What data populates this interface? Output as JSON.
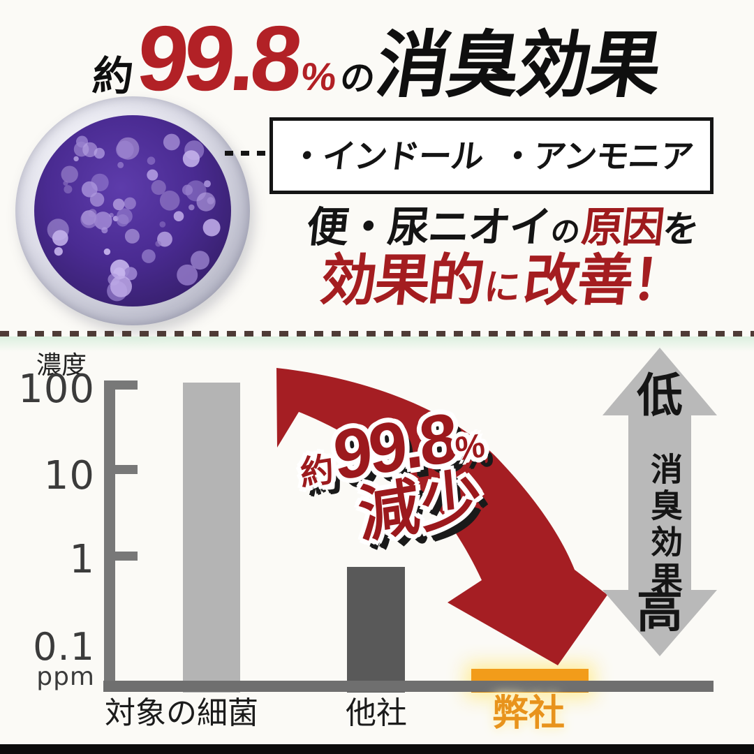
{
  "page": {
    "background": "#fbfaf6",
    "accent_red": "#b22126",
    "dark_red": "#a41d20",
    "bottom_bar_color": "#0c0c0c"
  },
  "header": {
    "approx": "約",
    "value": "99.8",
    "percent": "%",
    "particle": "の",
    "title": "消臭効果"
  },
  "specimen": {
    "description": "petri-dish-bacteria-culture-photo"
  },
  "callout": {
    "items": [
      "・インドール",
      "・アンモニア"
    ]
  },
  "lead": {
    "line1": {
      "pre": "便・尿ニオイ",
      "no": "の",
      "accent": "原因",
      "post": "を"
    },
    "line2": {
      "a": "効果的",
      "ni": "に",
      "b": "改善！"
    }
  },
  "chart_data": {
    "type": "bar",
    "title": "",
    "y_axis_label": "濃度",
    "y_unit": "ppm",
    "y_scale": "log",
    "y_ticks": [
      "100",
      "10",
      "1",
      "0.1"
    ],
    "categories": [
      "対象の細菌",
      "他社",
      "弊社"
    ],
    "values": [
      100,
      1,
      0.1
    ],
    "bar_colors": [
      "#b4b4b4",
      "#595959",
      "#f29c1a"
    ],
    "highlight_category": "弊社",
    "annotation": {
      "approx": "約",
      "value": "99.8",
      "percent": "%",
      "label": "減少"
    },
    "right_scale": {
      "top": "低",
      "middle": "消臭効果",
      "bottom": "高"
    },
    "grid": false,
    "legend": false
  }
}
